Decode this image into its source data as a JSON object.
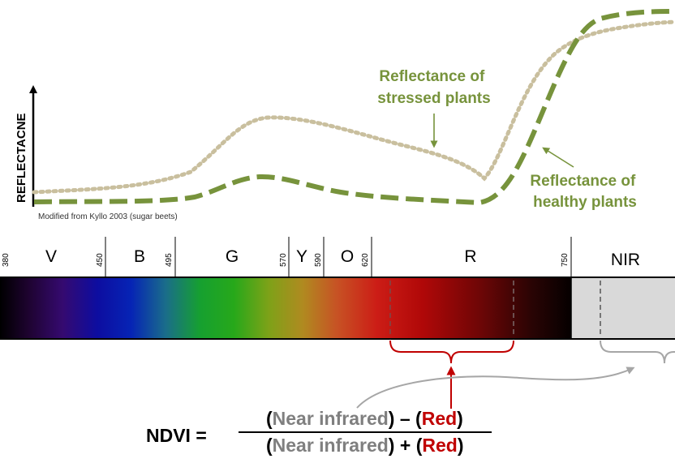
{
  "y_axis_label": "REFLECTACNE",
  "source_note": "Modified from Kyllo 2003 (sugar beets)",
  "annotations": {
    "stressed": [
      "Reflectance of",
      "stressed plants"
    ],
    "healthy": [
      "Reflectance of",
      "healthy plants"
    ]
  },
  "bands": [
    "V",
    "B",
    "G",
    "Y",
    "O",
    "R",
    "NIR"
  ],
  "wavelengths": [
    "380",
    "450",
    "495",
    "570",
    "590",
    "620",
    "750"
  ],
  "formula": {
    "lhs": "NDVI =",
    "open_paren": "(",
    "close_paren": ")",
    "near_infrared": "Near infrared",
    "minus": " – ",
    "plus": " + ",
    "red": "Red"
  },
  "colors": {
    "healthy_curve": "#77933c",
    "stressed_curve": "#c9bf9e",
    "annotation_text": "#77933c",
    "red_term": "#c00000",
    "nir_term": "#7f7f7f",
    "red_bracket": "#c00000",
    "nir_bracket": "#a6a6a6",
    "nir_region": "#d9d9d9"
  }
}
